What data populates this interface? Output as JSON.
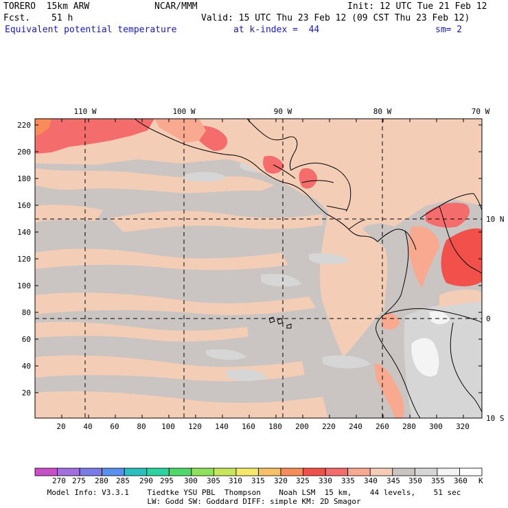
{
  "header": {
    "model": "TORERO  15km ARW",
    "org": "NCAR/MMM",
    "init": "Init: 12 UTC Tue 21 Feb 12",
    "fcst_label": "Fcst.",
    "fcst_value": "51 h",
    "valid": "Valid: 15 UTC Thu 23 Feb 12 (09 CST Thu 23 Feb 12)",
    "field": "Equivalent potential temperature",
    "level": "at k-index =  44",
    "smooth": "sm= 2"
  },
  "map": {
    "lon_labels": [
      "110 W",
      "100 W",
      "90 W",
      "80 W",
      "70 W"
    ],
    "lat_labels": [
      "10 N",
      "0",
      "10 S"
    ],
    "y_ticks": [
      "20",
      "40",
      "60",
      "80",
      "100",
      "120",
      "140",
      "160",
      "180",
      "200",
      "220"
    ],
    "x_ticks": [
      "20",
      "40",
      "60",
      "80",
      "100",
      "120",
      "140",
      "160",
      "180",
      "200",
      "220",
      "240",
      "260",
      "280",
      "300",
      "320"
    ]
  },
  "colorbar": {
    "labels": [
      "270",
      "275",
      "280",
      "285",
      "290",
      "295",
      "300",
      "305",
      "310",
      "315",
      "320",
      "325",
      "330",
      "335",
      "340",
      "345",
      "350",
      "355",
      "360"
    ],
    "unit": "K",
    "colors": [
      "#c94fc9",
      "#a36ee0",
      "#7a7ae8",
      "#5a8ff0",
      "#2bbfbf",
      "#2bd39e",
      "#4fd96b",
      "#8fe05a",
      "#c8e65c",
      "#f5e96b",
      "#f7c067",
      "#f78c5a",
      "#f2504a",
      "#f46c6c",
      "#f9a98f",
      "#f3cdb6",
      "#cac4c2",
      "#d6d6d6",
      "#f4f4f4",
      "#ffffff"
    ]
  },
  "footer": {
    "line1": "Model Info: V3.3.1    Tiedtke YSU PBL  Thompson    Noah LSM  15 km,    44 levels,    51 sec",
    "line2": "LW: Godd SW: Goddard DIFF: simple KM: 2D Smagor"
  }
}
